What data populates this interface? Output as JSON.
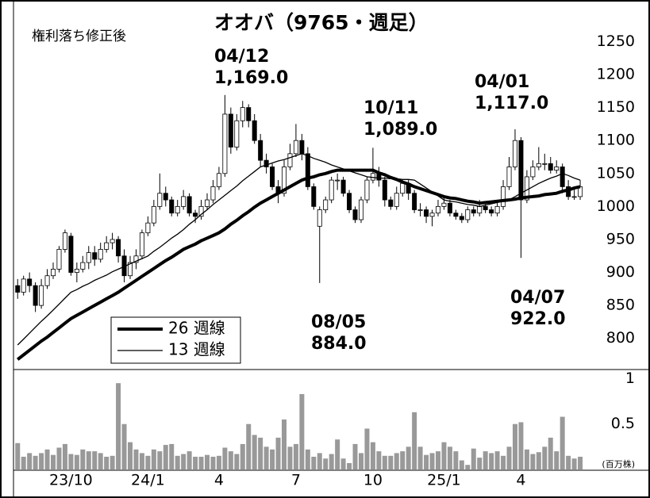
{
  "chart_data": {
    "type": "candlestick",
    "title": "オオバ（9765・週足）",
    "subtitle": "権利落ち修正後",
    "volume_unit": "(百万株)",
    "ylim": [
      760,
      1295
    ],
    "yticks": [
      800,
      850,
      900,
      950,
      1000,
      1050,
      1100,
      1150,
      1200,
      1250
    ],
    "vlim": [
      0,
      1.1
    ],
    "vticks": [
      0.5,
      1
    ],
    "xlim": [
      -0.3,
      96.2
    ],
    "xticks": [
      {
        "value": 9,
        "label": "23/10"
      },
      {
        "value": 22,
        "label": "24/1"
      },
      {
        "value": 34,
        "label": "4"
      },
      {
        "value": 47,
        "label": "7"
      },
      {
        "value": 60,
        "label": "10"
      },
      {
        "value": 72,
        "label": "25/1"
      },
      {
        "value": 85,
        "label": "4"
      }
    ],
    "open": [
      880,
      870,
      890,
      880,
      850,
      880,
      895,
      905,
      935,
      955,
      900,
      905,
      915,
      930,
      920,
      935,
      945,
      950,
      925,
      895,
      915,
      925,
      960,
      975,
      1000,
      1020,
      1010,
      990,
      1000,
      1015,
      990,
      985,
      1000,
      1010,
      1030,
      1050,
      1140,
      1090,
      1130,
      1150,
      1130,
      1100,
      1070,
      1060,
      1030,
      1020,
      1060,
      1080,
      1100,
      1080,
      1030,
      970,
      995,
      1010,
      1040,
      1040,
      1020,
      995,
      980,
      1010,
      1040,
      1050,
      1040,
      1010,
      1000,
      1020,
      1035,
      1020,
      995,
      995,
      985,
      990,
      1000,
      1005,
      990,
      985,
      980,
      995,
      990,
      1000,
      995,
      990,
      1000,
      1030,
      1060,
      1100,
      1010,
      1045,
      1060,
      1065,
      1065,
      1055,
      1060,
      1030,
      1015,
      1015
    ],
    "high": [
      890,
      895,
      900,
      885,
      890,
      905,
      915,
      940,
      965,
      960,
      915,
      925,
      940,
      940,
      945,
      955,
      960,
      955,
      935,
      925,
      935,
      965,
      985,
      1010,
      1050,
      1030,
      1015,
      1010,
      1025,
      1020,
      995,
      1010,
      1020,
      1040,
      1060,
      1169,
      1150,
      1140,
      1160,
      1155,
      1140,
      1110,
      1080,
      1065,
      1040,
      1070,
      1095,
      1125,
      1110,
      1090,
      1035,
      1000,
      1015,
      1045,
      1050,
      1045,
      1025,
      1000,
      1015,
      1045,
      1089,
      1060,
      1045,
      1015,
      1030,
      1040,
      1040,
      1025,
      1005,
      1000,
      995,
      1010,
      1015,
      1010,
      995,
      990,
      1000,
      1000,
      1010,
      1005,
      1000,
      1010,
      1040,
      1075,
      1117,
      1105,
      1055,
      1070,
      1090,
      1080,
      1075,
      1070,
      1065,
      1040,
      1030,
      1040
    ],
    "low": [
      860,
      865,
      870,
      840,
      845,
      875,
      890,
      900,
      930,
      895,
      885,
      900,
      905,
      910,
      915,
      930,
      935,
      915,
      885,
      890,
      905,
      920,
      955,
      970,
      995,
      1000,
      985,
      985,
      995,
      985,
      975,
      980,
      995,
      1005,
      1025,
      1045,
      1080,
      1085,
      1120,
      1120,
      1095,
      1060,
      1050,
      1025,
      1005,
      1015,
      1055,
      1075,
      1070,
      1025,
      995,
      884,
      990,
      1005,
      1025,
      1015,
      990,
      975,
      975,
      1005,
      1035,
      1030,
      1000,
      995,
      995,
      1015,
      1010,
      990,
      985,
      975,
      970,
      985,
      995,
      985,
      980,
      975,
      975,
      985,
      985,
      990,
      985,
      985,
      995,
      1025,
      1055,
      922,
      1005,
      1040,
      1055,
      1055,
      1050,
      1050,
      1020,
      1010,
      1010,
      1010
    ],
    "close": [
      870,
      890,
      880,
      850,
      880,
      895,
      905,
      935,
      960,
      900,
      905,
      915,
      930,
      920,
      935,
      945,
      950,
      925,
      895,
      915,
      925,
      960,
      975,
      1000,
      1020,
      1010,
      990,
      1000,
      1015,
      990,
      985,
      1000,
      1010,
      1030,
      1050,
      1140,
      1090,
      1130,
      1150,
      1130,
      1100,
      1070,
      1060,
      1030,
      1020,
      1060,
      1080,
      1100,
      1080,
      1030,
      1000,
      995,
      1010,
      1040,
      1040,
      1020,
      995,
      980,
      1010,
      1040,
      1050,
      1040,
      1010,
      1000,
      1020,
      1035,
      1020,
      995,
      995,
      985,
      990,
      1000,
      1005,
      990,
      985,
      980,
      995,
      990,
      1000,
      995,
      990,
      1000,
      1030,
      1060,
      1100,
      1010,
      1045,
      1060,
      1065,
      1065,
      1055,
      1060,
      1030,
      1015,
      1015,
      1030
    ],
    "volume": [
      0.29,
      0.14,
      0.18,
      0.15,
      0.18,
      0.22,
      0.16,
      0.24,
      0.28,
      0.17,
      0.16,
      0.22,
      0.2,
      0.2,
      0.18,
      0.14,
      0.15,
      0.95,
      0.5,
      0.3,
      0.22,
      0.18,
      0.15,
      0.22,
      0.2,
      0.27,
      0.28,
      0.15,
      0.17,
      0.2,
      0.14,
      0.14,
      0.16,
      0.14,
      0.15,
      0.24,
      0.2,
      0.17,
      0.28,
      0.5,
      0.38,
      0.35,
      0.25,
      0.22,
      0.35,
      0.55,
      0.25,
      0.28,
      0.83,
      0.22,
      0.14,
      0.18,
      0.12,
      0.17,
      0.33,
      0.12,
      0.07,
      0.28,
      0.18,
      0.45,
      0.3,
      0.2,
      0.15,
      0.15,
      0.18,
      0.2,
      0.25,
      0.63,
      0.25,
      0.16,
      0.18,
      0.2,
      0.3,
      0.25,
      0.2,
      0.1,
      0.05,
      0.23,
      0.13,
      0.2,
      0.18,
      0.2,
      0.15,
      0.25,
      0.5,
      0.52,
      0.22,
      0.17,
      0.19,
      0.25,
      0.35,
      0.2,
      0.58,
      0.15,
      0.12,
      0.14
    ],
    "series": [
      {
        "name": "26 週線",
        "width": 4,
        "color": "#000000",
        "values": [
          768,
          775,
          782,
          789,
          796,
          802,
          809,
          816,
          823,
          830,
          835,
          840,
          845,
          850,
          855,
          860,
          865,
          870,
          876,
          882,
          888,
          894,
          900,
          906,
          912,
          918,
          923,
          929,
          935,
          939,
          943,
          948,
          952,
          956,
          960,
          966,
          973,
          979,
          986,
          992,
          999,
          1005,
          1010,
          1015,
          1020,
          1025,
          1030,
          1035,
          1040,
          1043,
          1045,
          1048,
          1050,
          1053,
          1055,
          1055,
          1055,
          1055,
          1055,
          1055,
          1055,
          1051,
          1048,
          1044,
          1041,
          1037,
          1034,
          1030,
          1027,
          1024,
          1021,
          1018,
          1015,
          1013,
          1012,
          1010,
          1008,
          1007,
          1005,
          1006,
          1007,
          1008,
          1009,
          1010,
          1011,
          1013,
          1014,
          1015,
          1016,
          1018,
          1019,
          1020,
          1023,
          1025,
          1028,
          1030
        ]
      },
      {
        "name": "13 週線",
        "width": 1.3,
        "color": "#000000",
        "values": [
          790,
          799,
          808,
          817,
          826,
          834,
          843,
          852,
          861,
          870,
          874,
          879,
          883,
          888,
          892,
          896,
          901,
          905,
          909,
          913,
          917,
          921,
          925,
          932,
          938,
          945,
          952,
          958,
          965,
          973,
          980,
          988,
          995,
          1003,
          1010,
          1017,
          1024,
          1031,
          1039,
          1046,
          1053,
          1060,
          1063,
          1066,
          1069,
          1071,
          1074,
          1077,
          1080,
          1077,
          1073,
          1070,
          1067,
          1063,
          1060,
          1057,
          1054,
          1051,
          1048,
          1045,
          1044,
          1043,
          1043,
          1042,
          1042,
          1041,
          1041,
          1040,
          1034,
          1028,
          1022,
          1016,
          1010,
          1008,
          1007,
          1005,
          1003,
          1002,
          1000,
          1002,
          1004,
          1006,
          1008,
          1010,
          1015,
          1020,
          1025,
          1030,
          1035,
          1039,
          1043,
          1046,
          1050,
          1047,
          1043,
          1040
        ]
      }
    ],
    "annotations": [
      {
        "date": "04/12",
        "value": "1,169.0"
      },
      {
        "date": "10/11",
        "value": "1,089.0"
      },
      {
        "date": "04/01",
        "value": "1,117.0"
      },
      {
        "date": "08/05",
        "value": "884.0"
      },
      {
        "date": "04/07",
        "value": "922.0"
      }
    ]
  }
}
